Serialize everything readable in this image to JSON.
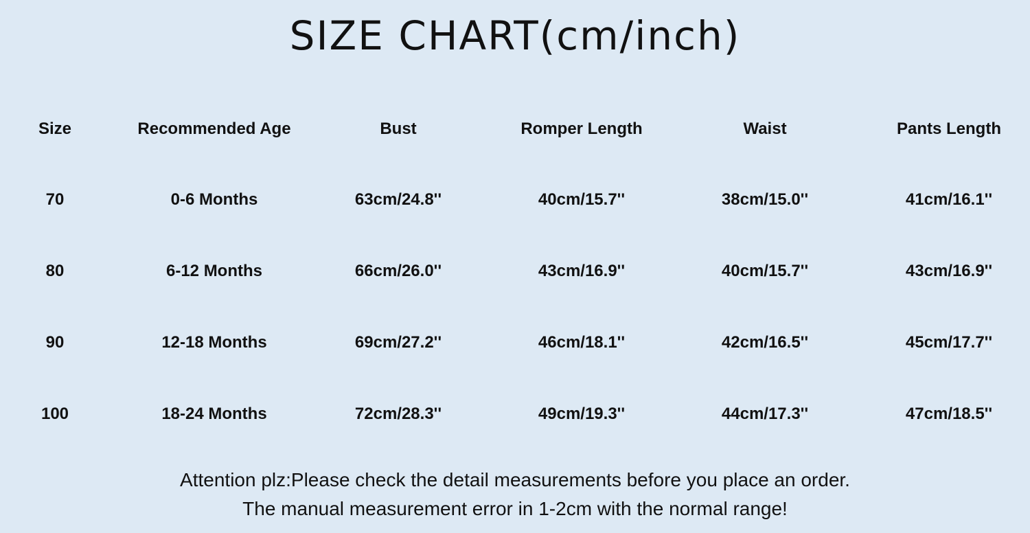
{
  "title": "SIZE CHART(cm/inch)",
  "table": {
    "headers": [
      "Size",
      "Recommended Age",
      "Bust",
      "Romper Length",
      "Waist",
      "Pants Length"
    ],
    "rows": [
      [
        "70",
        "0-6 Months",
        "63cm/24.8''",
        "40cm/15.7''",
        "38cm/15.0''",
        "41cm/16.1''"
      ],
      [
        "80",
        "6-12 Months",
        "66cm/26.0''",
        "43cm/16.9''",
        "40cm/15.7''",
        "43cm/16.9''"
      ],
      [
        "90",
        "12-18 Months",
        "69cm/27.2''",
        "46cm/18.1''",
        "42cm/16.5''",
        "45cm/17.7''"
      ],
      [
        "100",
        "18-24 Months",
        "72cm/28.3''",
        "49cm/19.3''",
        "44cm/17.3''",
        "47cm/18.5''"
      ]
    ]
  },
  "footer": {
    "line1": "Attention plz:Please check the detail measurements before you place an order.",
    "line2": "The manual measurement error in 1-2cm with the normal range!"
  },
  "colors": {
    "background": "#dde9f4",
    "text": "#111111"
  }
}
